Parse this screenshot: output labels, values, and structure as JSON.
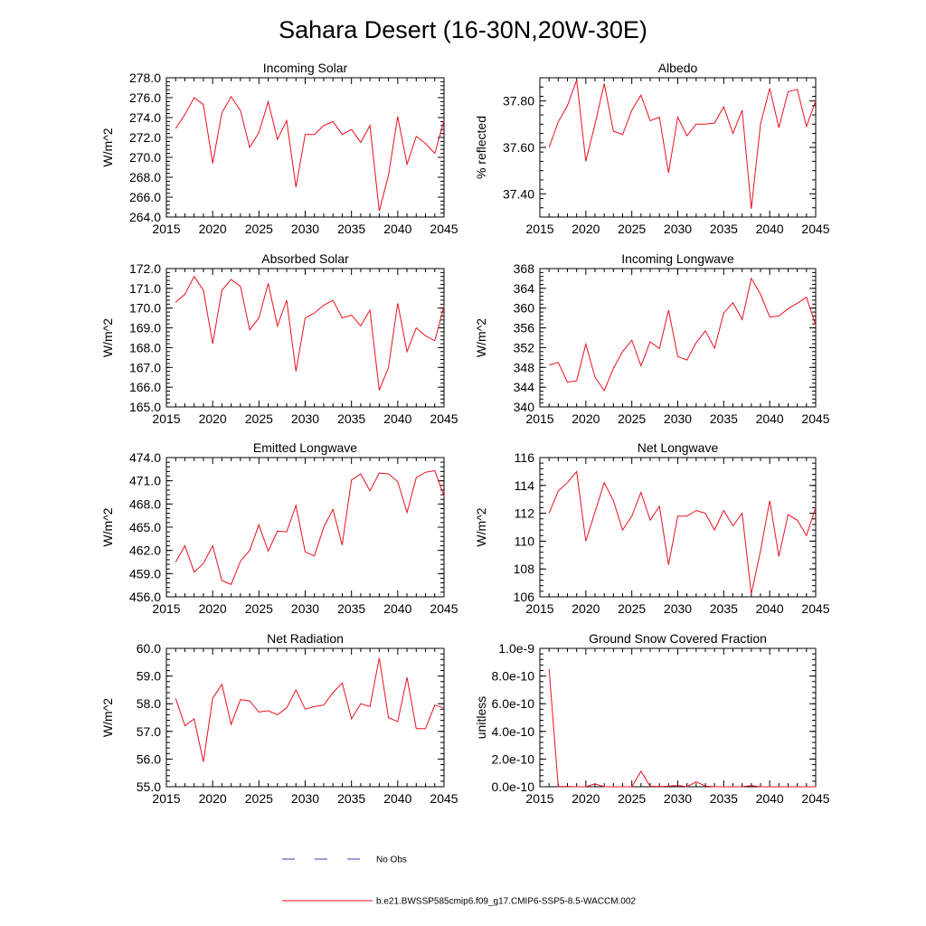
{
  "title": "Sahara Desert (16-30N,20W-30E)",
  "legend": {
    "obs_label": "No Obs",
    "model_label": "b.e21.BWSSP585cmip6.f09_g17.CMIP6-SSP5-8.5-WACCM.002",
    "obs_color": "#3344aa",
    "model_color": "#e8101e"
  },
  "chart_data": [
    {
      "type": "line",
      "title": "Incoming Solar",
      "ylabel": "W/m^2",
      "xlim": [
        2015,
        2045
      ],
      "ylim": [
        264,
        278
      ],
      "yticks": [
        264,
        266,
        268,
        270,
        272,
        274,
        276,
        278
      ],
      "yticklabels": [
        "264.0",
        "266.0",
        "268.0",
        "270.0",
        "272.0",
        "274.0",
        "276.0",
        "278.0"
      ],
      "xticks": [
        2015,
        2020,
        2025,
        2030,
        2035,
        2040,
        2045
      ],
      "x": [
        2016,
        2017,
        2018,
        2019,
        2020,
        2021,
        2022,
        2023,
        2024,
        2025,
        2026,
        2027,
        2028,
        2029,
        2030,
        2031,
        2032,
        2033,
        2034,
        2035,
        2036,
        2037,
        2038,
        2039,
        2040,
        2041,
        2042,
        2043,
        2044,
        2045
      ],
      "values": [
        272.9,
        274.3,
        276.0,
        275.3,
        269.4,
        274.5,
        276.1,
        274.7,
        271.0,
        272.5,
        275.6,
        271.8,
        273.7,
        267.0,
        272.3,
        272.3,
        273.2,
        273.6,
        272.3,
        272.8,
        271.5,
        273.2,
        264.6,
        268.2,
        274.1,
        269.3,
        272.1,
        271.4,
        270.4,
        273.7
      ]
    },
    {
      "type": "line",
      "title": "Albedo",
      "ylabel": "% reflected",
      "xlim": [
        2015,
        2045
      ],
      "ylim": [
        37.3,
        37.9
      ],
      "yticks": [
        37.4,
        37.6,
        37.8
      ],
      "yticklabels": [
        "37.40",
        "37.60",
        "37.80"
      ],
      "xticks": [
        2015,
        2020,
        2025,
        2030,
        2035,
        2040,
        2045
      ],
      "x": [
        2016,
        2017,
        2018,
        2019,
        2020,
        2021,
        2022,
        2023,
        2024,
        2025,
        2026,
        2027,
        2028,
        2029,
        2030,
        2031,
        2032,
        2033,
        2034,
        2035,
        2036,
        2037,
        2038,
        2039,
        2040,
        2041,
        2042,
        2043,
        2044,
        2045
      ],
      "values": [
        37.6,
        37.71,
        37.78,
        37.89,
        37.54,
        37.7,
        37.875,
        37.67,
        37.655,
        37.76,
        37.825,
        37.715,
        37.73,
        37.49,
        37.73,
        37.65,
        37.7,
        37.7,
        37.705,
        37.775,
        37.66,
        37.76,
        37.335,
        37.7,
        37.855,
        37.685,
        37.84,
        37.85,
        37.69,
        37.8
      ]
    },
    {
      "type": "line",
      "title": "Absorbed Solar",
      "ylabel": "W/m^2",
      "xlim": [
        2015,
        2045
      ],
      "ylim": [
        165,
        172
      ],
      "yticks": [
        165,
        166,
        167,
        168,
        169,
        170,
        171,
        172
      ],
      "yticklabels": [
        "165.0",
        "166.0",
        "167.0",
        "168.0",
        "169.0",
        "170.0",
        "171.0",
        "172.0"
      ],
      "xticks": [
        2015,
        2020,
        2025,
        2030,
        2035,
        2040,
        2045
      ],
      "x": [
        2016,
        2017,
        2018,
        2019,
        2020,
        2021,
        2022,
        2023,
        2024,
        2025,
        2026,
        2027,
        2028,
        2029,
        2030,
        2031,
        2032,
        2033,
        2034,
        2035,
        2036,
        2037,
        2038,
        2039,
        2040,
        2041,
        2042,
        2043,
        2044,
        2045
      ],
      "values": [
        170.3,
        170.7,
        171.6,
        170.9,
        168.2,
        170.9,
        171.45,
        171.1,
        168.9,
        169.5,
        171.25,
        169.1,
        170.4,
        166.8,
        169.5,
        169.75,
        170.15,
        170.4,
        169.5,
        169.65,
        169.1,
        169.9,
        165.85,
        167.0,
        170.25,
        167.8,
        169.0,
        168.6,
        168.35,
        170.1
      ]
    },
    {
      "type": "line",
      "title": "Incoming Longwave",
      "ylabel": "W/m^2",
      "xlim": [
        2015,
        2045
      ],
      "ylim": [
        340,
        368
      ],
      "yticks": [
        340,
        344,
        348,
        352,
        356,
        360,
        364,
        368
      ],
      "yticklabels": [
        "340",
        "344",
        "348",
        "352",
        "356",
        "360",
        "364",
        "368"
      ],
      "xticks": [
        2015,
        2020,
        2025,
        2030,
        2035,
        2040,
        2045
      ],
      "x": [
        2016,
        2017,
        2018,
        2019,
        2020,
        2021,
        2022,
        2023,
        2024,
        2025,
        2026,
        2027,
        2028,
        2029,
        2030,
        2031,
        2032,
        2033,
        2034,
        2035,
        2036,
        2037,
        2038,
        2039,
        2040,
        2041,
        2042,
        2043,
        2044,
        2045
      ],
      "values": [
        348.5,
        349.0,
        345.0,
        345.3,
        352.7,
        346.0,
        343.3,
        347.8,
        351.2,
        353.5,
        348.3,
        353.2,
        351.8,
        359.6,
        350.2,
        349.5,
        353.0,
        355.4,
        351.9,
        359.0,
        361.1,
        357.7,
        366.0,
        362.8,
        358.2,
        358.4,
        359.9,
        361.0,
        362.2,
        356.5
      ]
    },
    {
      "type": "line",
      "title": "Emitted Longwave",
      "ylabel": "W/m^2",
      "xlim": [
        2015,
        2045
      ],
      "ylim": [
        456,
        474
      ],
      "yticks": [
        456,
        459,
        462,
        465,
        468,
        471,
        474
      ],
      "yticklabels": [
        "456.0",
        "459.0",
        "462.0",
        "465.0",
        "468.0",
        "471.0",
        "474.0"
      ],
      "xticks": [
        2015,
        2020,
        2025,
        2030,
        2035,
        2040,
        2045
      ],
      "x": [
        2016,
        2017,
        2018,
        2019,
        2020,
        2021,
        2022,
        2023,
        2024,
        2025,
        2026,
        2027,
        2028,
        2029,
        2030,
        2031,
        2032,
        2033,
        2034,
        2035,
        2036,
        2037,
        2038,
        2039,
        2040,
        2041,
        2042,
        2043,
        2044,
        2045
      ],
      "values": [
        460.5,
        462.6,
        459.2,
        460.3,
        462.6,
        458.1,
        457.6,
        460.6,
        462.0,
        465.3,
        461.9,
        464.5,
        464.4,
        467.8,
        461.8,
        461.3,
        465.0,
        467.3,
        462.7,
        471.1,
        471.9,
        469.7,
        472.0,
        471.9,
        470.9,
        466.9,
        471.4,
        472.1,
        472.3,
        469.0
      ]
    },
    {
      "type": "line",
      "title": "Net Longwave",
      "ylabel": "W/m^2",
      "xlim": [
        2015,
        2045
      ],
      "ylim": [
        106,
        116
      ],
      "yticks": [
        106,
        108,
        110,
        112,
        114,
        116
      ],
      "yticklabels": [
        "106",
        "108",
        "110",
        "112",
        "114",
        "116"
      ],
      "xticks": [
        2015,
        2020,
        2025,
        2030,
        2035,
        2040,
        2045
      ],
      "x": [
        2016,
        2017,
        2018,
        2019,
        2020,
        2021,
        2022,
        2023,
        2024,
        2025,
        2026,
        2027,
        2028,
        2029,
        2030,
        2031,
        2032,
        2033,
        2034,
        2035,
        2036,
        2037,
        2038,
        2039,
        2040,
        2041,
        2042,
        2043,
        2044,
        2045
      ],
      "values": [
        112.0,
        113.6,
        114.2,
        115.0,
        110.0,
        112.1,
        114.2,
        112.9,
        110.8,
        111.8,
        113.5,
        111.5,
        112.5,
        108.3,
        111.8,
        111.8,
        112.2,
        112.0,
        110.8,
        112.2,
        111.1,
        112.0,
        106.2,
        109.3,
        112.9,
        108.9,
        111.9,
        111.5,
        110.4,
        112.4
      ]
    },
    {
      "type": "line",
      "title": "Net Radiation",
      "ylabel": "W/m^2",
      "xlim": [
        2015,
        2045
      ],
      "ylim": [
        55,
        60
      ],
      "yticks": [
        55,
        56,
        57,
        58,
        59,
        60
      ],
      "yticklabels": [
        "55.0",
        "56.0",
        "57.0",
        "58.0",
        "59.0",
        "60.0"
      ],
      "xticks": [
        2015,
        2020,
        2025,
        2030,
        2035,
        2040,
        2045
      ],
      "x": [
        2016,
        2017,
        2018,
        2019,
        2020,
        2021,
        2022,
        2023,
        2024,
        2025,
        2026,
        2027,
        2028,
        2029,
        2030,
        2031,
        2032,
        2033,
        2034,
        2035,
        2036,
        2037,
        2038,
        2039,
        2040,
        2041,
        2042,
        2043,
        2044,
        2045
      ],
      "values": [
        58.2,
        57.2,
        57.45,
        55.9,
        58.2,
        58.7,
        57.25,
        58.15,
        58.1,
        57.7,
        57.75,
        57.6,
        57.85,
        58.5,
        57.8,
        57.9,
        57.95,
        58.4,
        58.75,
        57.45,
        58.0,
        57.9,
        59.65,
        57.5,
        57.35,
        58.95,
        57.1,
        57.1,
        57.95,
        57.85
      ]
    },
    {
      "type": "line",
      "title": "Ground Snow Covered Fraction",
      "ylabel": "unitless",
      "xlim": [
        2015,
        2045
      ],
      "ylim": [
        0,
        1e-09
      ],
      "yticks": [
        0,
        2e-10,
        4e-10,
        6e-10,
        8e-10,
        1e-09
      ],
      "yticklabels": [
        "0.0e-10",
        "2.0e-10",
        "4.0e-10",
        "6.0e-10",
        "8.0e-10",
        "1.0e-9"
      ],
      "xticks": [
        2015,
        2020,
        2025,
        2030,
        2035,
        2040,
        2045
      ],
      "x": [
        2016,
        2017,
        2018,
        2019,
        2020,
        2021,
        2022,
        2023,
        2024,
        2025,
        2026,
        2027,
        2028,
        2029,
        2030,
        2031,
        2032,
        2033,
        2034,
        2035,
        2036,
        2037,
        2038,
        2039,
        2040,
        2041,
        2042,
        2043,
        2044,
        2045
      ],
      "values": [
        8.5e-10,
        2e-12,
        1e-12,
        0,
        0,
        2e-11,
        0,
        0,
        0,
        0,
        1.12e-10,
        3e-12,
        2e-12,
        4e-12,
        1e-11,
        0,
        3.5e-11,
        5e-12,
        0,
        0,
        0,
        0,
        8e-12,
        0,
        0,
        0,
        0,
        0,
        0,
        0
      ]
    }
  ]
}
